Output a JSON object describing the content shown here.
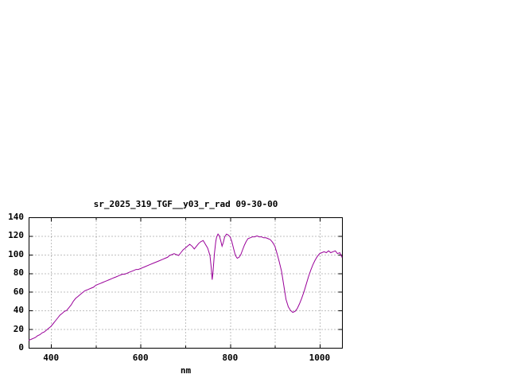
{
  "chart_data": {
    "type": "line",
    "title": "sr_2025_319_TGF__y03_r_rad 09-30-00",
    "xlabel": "nm",
    "ylabel": "",
    "xlim": [
      350,
      1050
    ],
    "ylim": [
      0,
      140
    ],
    "grid": true,
    "legend_position": "none",
    "line_color": "#990099",
    "grid_color": "#808080",
    "axis_color": "#000000",
    "x_ticks_labeled": [
      {
        "value": 400,
        "label": "400"
      },
      {
        "value": 600,
        "label": "600"
      },
      {
        "value": 800,
        "label": "800"
      },
      {
        "value": 1000,
        "label": "1000"
      }
    ],
    "x_grid": [
      400,
      500,
      600,
      700,
      800,
      900,
      1000
    ],
    "y_ticks": [
      {
        "value": 0,
        "label": "0"
      },
      {
        "value": 20,
        "label": "20"
      },
      {
        "value": 40,
        "label": "40"
      },
      {
        "value": 60,
        "label": "60"
      },
      {
        "value": 80,
        "label": "80"
      },
      {
        "value": 100,
        "label": "100"
      },
      {
        "value": 120,
        "label": "120"
      },
      {
        "value": 140,
        "label": "140"
      }
    ],
    "series": [
      {
        "name": "sr_2025_319_TGF__y03_r_rad",
        "points": [
          [
            350,
            8
          ],
          [
            355,
            9
          ],
          [
            360,
            10
          ],
          [
            365,
            11
          ],
          [
            370,
            13
          ],
          [
            375,
            14
          ],
          [
            380,
            16
          ],
          [
            385,
            17
          ],
          [
            390,
            19
          ],
          [
            395,
            21
          ],
          [
            400,
            23
          ],
          [
            405,
            26
          ],
          [
            410,
            29
          ],
          [
            415,
            32
          ],
          [
            420,
            35
          ],
          [
            425,
            37
          ],
          [
            430,
            39
          ],
          [
            435,
            40
          ],
          [
            440,
            43
          ],
          [
            445,
            46
          ],
          [
            450,
            50
          ],
          [
            455,
            53
          ],
          [
            460,
            55
          ],
          [
            465,
            57
          ],
          [
            470,
            59
          ],
          [
            475,
            61
          ],
          [
            480,
            62
          ],
          [
            485,
            63
          ],
          [
            490,
            64
          ],
          [
            495,
            65
          ],
          [
            500,
            67
          ],
          [
            505,
            68
          ],
          [
            510,
            69
          ],
          [
            515,
            70
          ],
          [
            520,
            71
          ],
          [
            525,
            72
          ],
          [
            530,
            73
          ],
          [
            535,
            74
          ],
          [
            540,
            75
          ],
          [
            545,
            76
          ],
          [
            550,
            77
          ],
          [
            555,
            78
          ],
          [
            560,
            79
          ],
          [
            565,
            79
          ],
          [
            570,
            80
          ],
          [
            575,
            81
          ],
          [
            580,
            82
          ],
          [
            585,
            83
          ],
          [
            590,
            84
          ],
          [
            595,
            84
          ],
          [
            600,
            85
          ],
          [
            610,
            87
          ],
          [
            620,
            89
          ],
          [
            630,
            91
          ],
          [
            640,
            93
          ],
          [
            650,
            95
          ],
          [
            655,
            96
          ],
          [
            660,
            97
          ],
          [
            665,
            99
          ],
          [
            670,
            100
          ],
          [
            675,
            101
          ],
          [
            680,
            100
          ],
          [
            685,
            99
          ],
          [
            690,
            102
          ],
          [
            695,
            105
          ],
          [
            700,
            107
          ],
          [
            705,
            109
          ],
          [
            710,
            111
          ],
          [
            715,
            109
          ],
          [
            720,
            106
          ],
          [
            725,
            109
          ],
          [
            730,
            112
          ],
          [
            735,
            114
          ],
          [
            740,
            115
          ],
          [
            745,
            111
          ],
          [
            750,
            107
          ],
          [
            755,
            99
          ],
          [
            758,
            86
          ],
          [
            760,
            73
          ],
          [
            762,
            82
          ],
          [
            765,
            101
          ],
          [
            768,
            114
          ],
          [
            770,
            119
          ],
          [
            773,
            122
          ],
          [
            776,
            120
          ],
          [
            779,
            115
          ],
          [
            782,
            109
          ],
          [
            785,
            113
          ],
          [
            788,
            119
          ],
          [
            792,
            122
          ],
          [
            796,
            121
          ],
          [
            800,
            119
          ],
          [
            804,
            114
          ],
          [
            808,
            106
          ],
          [
            812,
            99
          ],
          [
            816,
            96
          ],
          [
            820,
            97
          ],
          [
            824,
            100
          ],
          [
            828,
            105
          ],
          [
            832,
            110
          ],
          [
            836,
            114
          ],
          [
            840,
            117
          ],
          [
            845,
            118
          ],
          [
            850,
            119
          ],
          [
            855,
            119
          ],
          [
            860,
            120
          ],
          [
            865,
            119
          ],
          [
            870,
            119
          ],
          [
            875,
            118
          ],
          [
            880,
            118
          ],
          [
            885,
            117
          ],
          [
            890,
            116
          ],
          [
            895,
            113
          ],
          [
            900,
            109
          ],
          [
            905,
            101
          ],
          [
            910,
            92
          ],
          [
            915,
            82
          ],
          [
            920,
            67
          ],
          [
            925,
            52
          ],
          [
            930,
            44
          ],
          [
            935,
            40
          ],
          [
            940,
            38
          ],
          [
            945,
            39
          ],
          [
            950,
            42
          ],
          [
            955,
            47
          ],
          [
            960,
            53
          ],
          [
            965,
            60
          ],
          [
            970,
            68
          ],
          [
            975,
            76
          ],
          [
            980,
            83
          ],
          [
            985,
            89
          ],
          [
            990,
            94
          ],
          [
            995,
            98
          ],
          [
            1000,
            101
          ],
          [
            1005,
            102
          ],
          [
            1010,
            103
          ],
          [
            1015,
            102
          ],
          [
            1020,
            104
          ],
          [
            1025,
            102
          ],
          [
            1030,
            103
          ],
          [
            1035,
            104
          ],
          [
            1040,
            101
          ],
          [
            1045,
            102
          ],
          [
            1050,
            97
          ]
        ]
      }
    ]
  }
}
